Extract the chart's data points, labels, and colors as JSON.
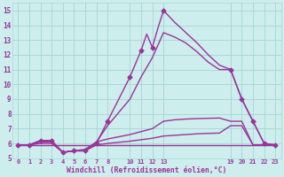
{
  "xlabel": "Windchill (Refroidissement éolien,°C)",
  "background_color": "#ceeeed",
  "grid_color": "#a8d8d8",
  "line_color": "#993399",
  "xlim": [
    -0.5,
    23.5
  ],
  "ylim": [
    5.0,
    15.5
  ],
  "yticks": [
    5,
    6,
    7,
    8,
    9,
    10,
    11,
    12,
    13,
    14,
    15
  ],
  "xticks": [
    0,
    1,
    2,
    3,
    4,
    5,
    6,
    7,
    8,
    10,
    11,
    12,
    13,
    19,
    20,
    21,
    22,
    23
  ],
  "curve1_x": [
    0,
    1,
    2,
    3,
    4,
    5,
    6,
    7,
    8,
    10,
    11,
    11.5,
    12,
    12.5,
    13,
    14,
    15,
    16,
    17,
    18,
    19,
    20,
    21,
    22,
    23
  ],
  "curve1_y": [
    5.9,
    5.9,
    6.2,
    6.2,
    5.4,
    5.5,
    5.5,
    6.0,
    7.5,
    10.5,
    12.3,
    13.4,
    12.5,
    13.8,
    15.0,
    14.2,
    13.5,
    12.8,
    12.0,
    11.3,
    11.0,
    9.0,
    7.5,
    6.0,
    5.9
  ],
  "curve2_x": [
    0,
    1,
    2,
    3,
    4,
    5,
    6,
    7,
    8,
    10,
    11,
    12,
    13,
    14,
    15,
    16,
    17,
    18,
    19,
    20,
    21,
    22,
    23
  ],
  "curve2_y": [
    5.9,
    5.9,
    6.2,
    6.1,
    5.4,
    5.5,
    5.5,
    6.1,
    7.2,
    9.0,
    10.5,
    11.8,
    13.5,
    13.2,
    12.8,
    12.2,
    11.5,
    11.0,
    11.0,
    9.0,
    7.5,
    6.0,
    5.9
  ],
  "curve3_x": [
    0,
    1,
    2,
    3,
    4,
    5,
    6,
    7,
    8,
    10,
    11,
    12,
    13,
    14,
    15,
    16,
    17,
    18,
    19,
    20,
    21,
    22,
    23
  ],
  "curve3_y": [
    5.9,
    5.9,
    6.1,
    6.1,
    5.4,
    5.5,
    5.6,
    6.1,
    6.3,
    6.6,
    6.8,
    7.0,
    7.5,
    7.6,
    7.65,
    7.68,
    7.7,
    7.72,
    7.5,
    7.5,
    5.9,
    5.9,
    5.9
  ],
  "curve4_x": [
    0,
    1,
    2,
    3,
    4,
    5,
    6,
    7,
    8,
    10,
    11,
    12,
    13,
    14,
    15,
    16,
    17,
    18,
    19,
    20,
    21,
    22,
    23
  ],
  "curve4_y": [
    5.9,
    5.9,
    6.0,
    6.0,
    5.4,
    5.5,
    5.5,
    5.9,
    6.0,
    6.15,
    6.25,
    6.35,
    6.5,
    6.55,
    6.6,
    6.65,
    6.68,
    6.7,
    7.2,
    7.2,
    5.9,
    5.9,
    5.9
  ],
  "curve5_x": [
    0,
    23
  ],
  "curve5_y": [
    5.9,
    5.9
  ],
  "marker_x": [
    0,
    1,
    2,
    3,
    4,
    5,
    6,
    7,
    8,
    10,
    11,
    12,
    13,
    19,
    20,
    21,
    22,
    23
  ],
  "marker_y": [
    5.9,
    5.9,
    6.2,
    6.2,
    5.4,
    5.5,
    5.5,
    6.0,
    7.5,
    10.5,
    12.3,
    12.5,
    15.0,
    11.0,
    9.0,
    7.5,
    6.0,
    5.9
  ],
  "linewidth": 1.0,
  "markersize": 2.5
}
